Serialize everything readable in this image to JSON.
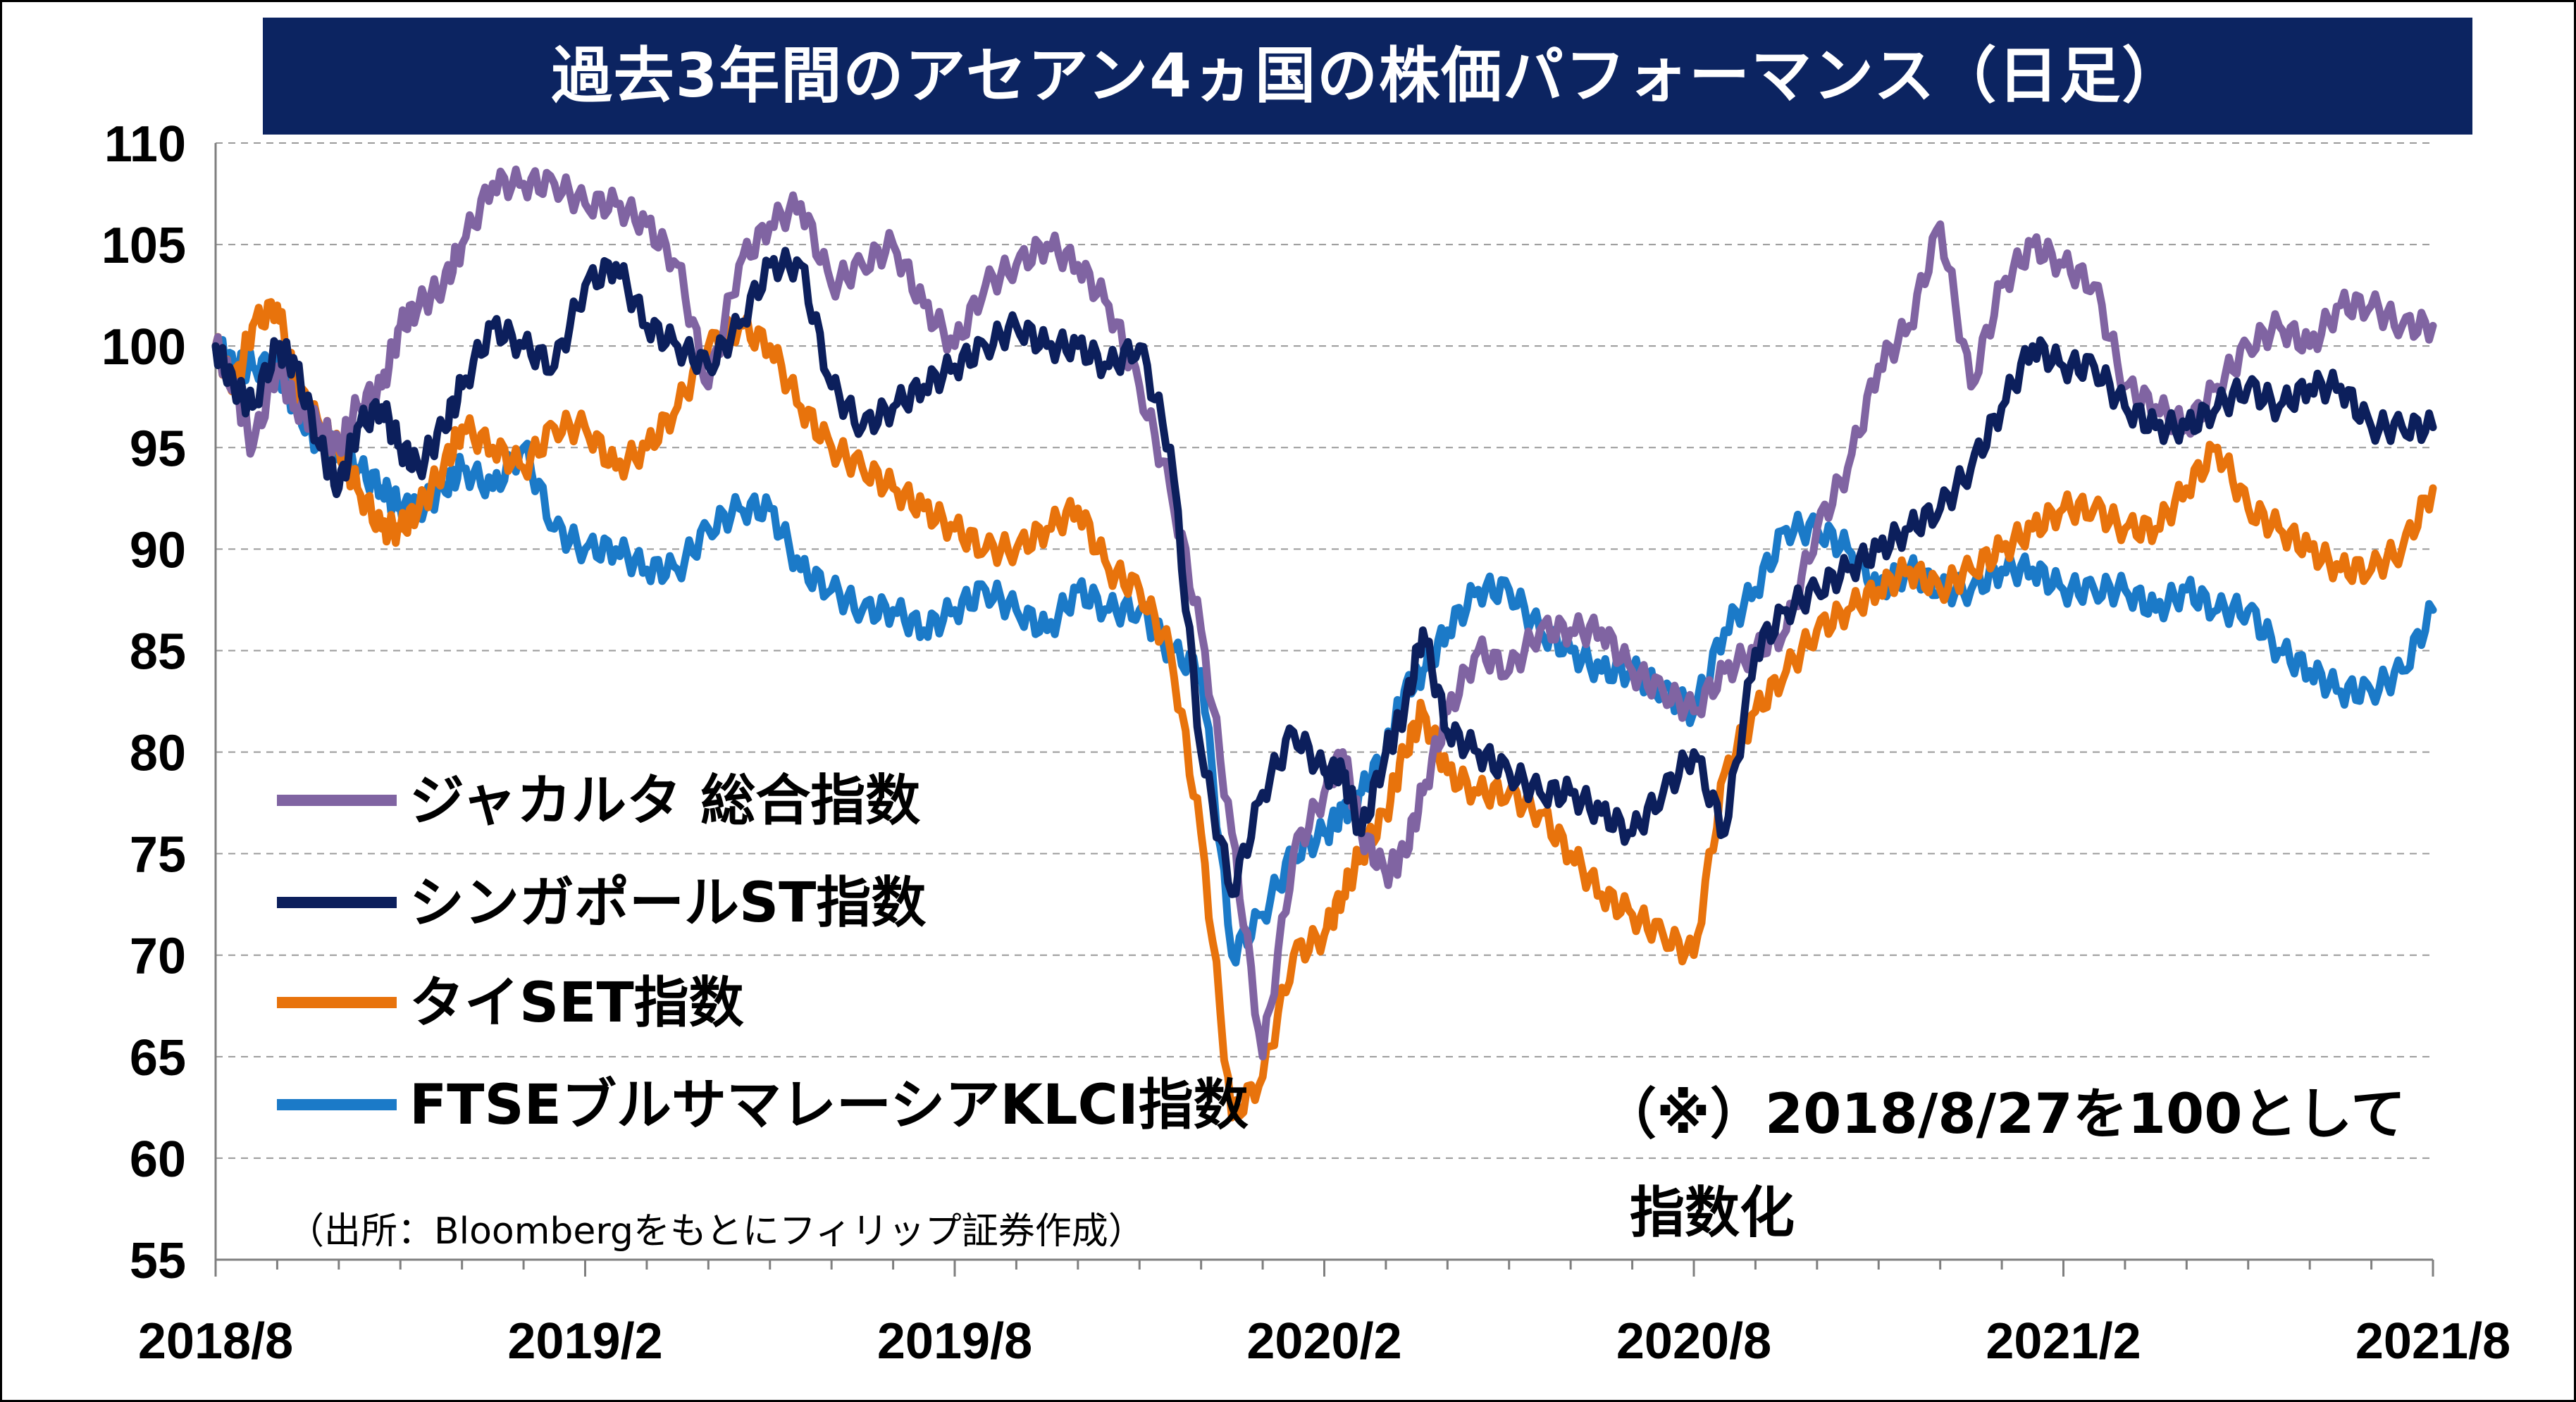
{
  "chart_data": {
    "type": "line",
    "title": "過去3年間のアセアン4ヵ国の株価パフォーマンス（日足）",
    "ylim": [
      55,
      110
    ],
    "yticks": [
      55,
      60,
      65,
      70,
      75,
      80,
      85,
      90,
      95,
      100,
      105,
      110
    ],
    "ytick_labels": [
      "55",
      "60",
      "65",
      "70",
      "75",
      "80",
      "85",
      "90",
      "95",
      "100",
      "105",
      "110"
    ],
    "xtick_labels": [
      "2018/8",
      "2019/2",
      "2019/8",
      "2020/2",
      "2020/8",
      "2021/2",
      "2021/8"
    ],
    "x_range_months": [
      0,
      36
    ],
    "grid": "horizontal dashed",
    "legend_position": "lower-left",
    "annotation_lines": [
      "（※）2018/8/27を100として",
      "指数化"
    ],
    "source": "（出所：Bloombergをもとにフィリップ証券作成）",
    "series": [
      {
        "name": "ジャカルタ 総合指数",
        "color": "#8064a2",
        "x": [
          0,
          0.3,
          0.6,
          1,
          1.3,
          1.7,
          2,
          2.3,
          2.7,
          3,
          3.3,
          3.7,
          4,
          4.5,
          5,
          5.5,
          6,
          6.5,
          7,
          7.5,
          8,
          8.5,
          9,
          9.5,
          10,
          10.5,
          11,
          11.5,
          12,
          12.5,
          13,
          13.5,
          14,
          14.5,
          15,
          15.5,
          16,
          16.5,
          17,
          17.5,
          18,
          18.3,
          18.6,
          19,
          19.3,
          19.6,
          20,
          20.5,
          21,
          21.5,
          22,
          22.5,
          23,
          23.5,
          24,
          24.5,
          25,
          25.5,
          26,
          26.5,
          27,
          27.5,
          28,
          28.5,
          29,
          29.5,
          30,
          30.5,
          31,
          31.5,
          32,
          32.5,
          33,
          33.5,
          34,
          34.5,
          35,
          35.5,
          36
        ],
        "y": [
          100,
          98,
          95,
          99,
          97,
          96,
          95,
          97,
          98,
          101,
          102,
          103,
          105,
          108,
          108,
          108,
          107,
          107,
          106,
          104,
          98,
          104,
          106,
          107,
          103,
          104,
          105,
          102,
          100,
          103,
          104,
          105,
          104,
          102,
          98,
          93,
          86,
          76,
          65,
          75,
          78,
          80,
          76,
          74,
          75,
          78,
          82,
          85,
          84,
          86,
          86,
          86,
          84,
          83,
          82,
          84,
          85,
          86,
          91,
          94,
          99,
          101,
          106,
          98,
          103,
          105,
          104,
          103,
          98,
          97,
          96,
          98,
          100,
          101,
          100,
          102,
          102,
          101,
          101
        ],
        "ytick_source": "estimated"
      },
      {
        "name": "シンガポールST指数",
        "color": "#0c1f5c",
        "x": [
          0,
          0.3,
          0.6,
          1,
          1.3,
          1.7,
          2,
          2.3,
          2.7,
          3,
          3.3,
          3.7,
          4,
          4.5,
          5,
          5.5,
          6,
          6.5,
          7,
          7.5,
          8,
          8.5,
          9,
          9.5,
          10,
          10.5,
          11,
          11.5,
          12,
          12.5,
          13,
          13.5,
          14,
          14.5,
          15,
          15.5,
          16,
          16.5,
          17,
          17.5,
          18,
          18.3,
          18.6,
          19,
          19.3,
          19.6,
          20,
          20.5,
          21,
          21.5,
          22,
          22.5,
          23,
          23.5,
          24,
          24.5,
          25,
          25.5,
          26,
          26.5,
          27,
          27.5,
          28,
          28.5,
          29,
          29.5,
          30,
          30.5,
          31,
          31.5,
          32,
          32.5,
          33,
          33.5,
          34,
          34.5,
          35,
          35.5,
          36
        ],
        "y": [
          100,
          98,
          97,
          100,
          99,
          95,
          93,
          96,
          97,
          95,
          94,
          96,
          98,
          101,
          100,
          99,
          103,
          104,
          101,
          100,
          99,
          101,
          104,
          104,
          98,
          96,
          97,
          98,
          99,
          100,
          101,
          100,
          100,
          99,
          100,
          95,
          80,
          73,
          78,
          81,
          79,
          79,
          76,
          80,
          82,
          86,
          81,
          80,
          79,
          78,
          78,
          77,
          76,
          78,
          80,
          76,
          85,
          87,
          88,
          89,
          90,
          91,
          92,
          94,
          97,
          100,
          99,
          99,
          97,
          96,
          96,
          97,
          98,
          97,
          98,
          98,
          96,
          96,
          96
        ],
        "ytick_source": "estimated"
      },
      {
        "name": "タイSET指数",
        "color": "#e8730c",
        "x": [
          0,
          0.3,
          0.6,
          1,
          1.3,
          1.7,
          2,
          2.3,
          2.7,
          3,
          3.3,
          3.7,
          4,
          4.5,
          5,
          5.5,
          6,
          6.5,
          7,
          7.5,
          8,
          8.5,
          9,
          9.5,
          10,
          10.5,
          11,
          11.5,
          12,
          12.5,
          13,
          13.5,
          14,
          14.5,
          15,
          15.5,
          16,
          16.5,
          17,
          17.5,
          18,
          18.3,
          18.6,
          19,
          19.3,
          19.6,
          20,
          20.5,
          21,
          21.5,
          22,
          22.5,
          23,
          23.5,
          24,
          24.5,
          25,
          25.5,
          26,
          26.5,
          27,
          27.5,
          28,
          28.5,
          29,
          29.5,
          30,
          30.5,
          31,
          31.5,
          32,
          32.5,
          33,
          33.5,
          34,
          34.5,
          35,
          35.5,
          36
        ],
        "y": [
          100,
          98,
          101,
          102,
          98,
          96,
          95,
          93,
          91,
          91,
          92,
          94,
          96,
          95,
          94,
          96,
          96,
          94,
          95,
          97,
          100,
          101,
          100,
          97,
          95,
          94,
          93,
          92,
          91,
          90,
          90,
          91,
          92,
          89,
          88,
          85,
          76,
          62,
          64,
          70,
          71,
          73,
          75,
          77,
          80,
          82,
          79,
          78,
          78,
          77,
          75,
          73,
          72,
          71,
          70,
          79,
          82,
          84,
          86,
          87,
          88,
          89,
          88,
          89,
          90,
          91,
          92,
          92,
          91,
          91,
          93,
          95,
          92,
          91,
          90,
          89,
          89,
          90,
          93
        ],
        "ytick_source": "estimated"
      },
      {
        "name": "FTSEブルサマレーシアKLCI指数",
        "color": "#1b7ac8",
        "x": [
          0,
          0.3,
          0.6,
          1,
          1.3,
          1.7,
          2,
          2.3,
          2.7,
          3,
          3.3,
          3.7,
          4,
          4.5,
          5,
          5.5,
          6,
          6.5,
          7,
          7.5,
          8,
          8.5,
          9,
          9.5,
          10,
          10.5,
          11,
          11.5,
          12,
          12.5,
          13,
          13.5,
          14,
          14.5,
          15,
          15.5,
          16,
          16.5,
          17,
          17.5,
          18,
          18.3,
          18.6,
          19,
          19.3,
          19.6,
          20,
          20.5,
          21,
          21.5,
          22,
          22.5,
          23,
          23.5,
          24,
          24.5,
          25,
          25.5,
          26,
          26.5,
          27,
          27.5,
          28,
          28.5,
          29,
          29.5,
          30,
          30.5,
          31,
          31.5,
          32,
          32.5,
          33,
          33.5,
          34,
          34.5,
          35,
          35.5,
          36
        ],
        "y": [
          100,
          99,
          99,
          99,
          97,
          95,
          95,
          94,
          93,
          92,
          92,
          93,
          94,
          93,
          95,
          91,
          90,
          90,
          89,
          89,
          91,
          92,
          92,
          89,
          88,
          87,
          87,
          86,
          87,
          88,
          87,
          86,
          88,
          87,
          87,
          85,
          84,
          70,
          72,
          75,
          76,
          77,
          78,
          80,
          83,
          84,
          86,
          88,
          88,
          86,
          85,
          84,
          84,
          83,
          82,
          86,
          88,
          91,
          91,
          90,
          88,
          89,
          88,
          88,
          89,
          89,
          88,
          88,
          88,
          87,
          88,
          87,
          87,
          85,
          84,
          83,
          83,
          84,
          87
        ],
        "ytick_source": "estimated"
      }
    ]
  }
}
